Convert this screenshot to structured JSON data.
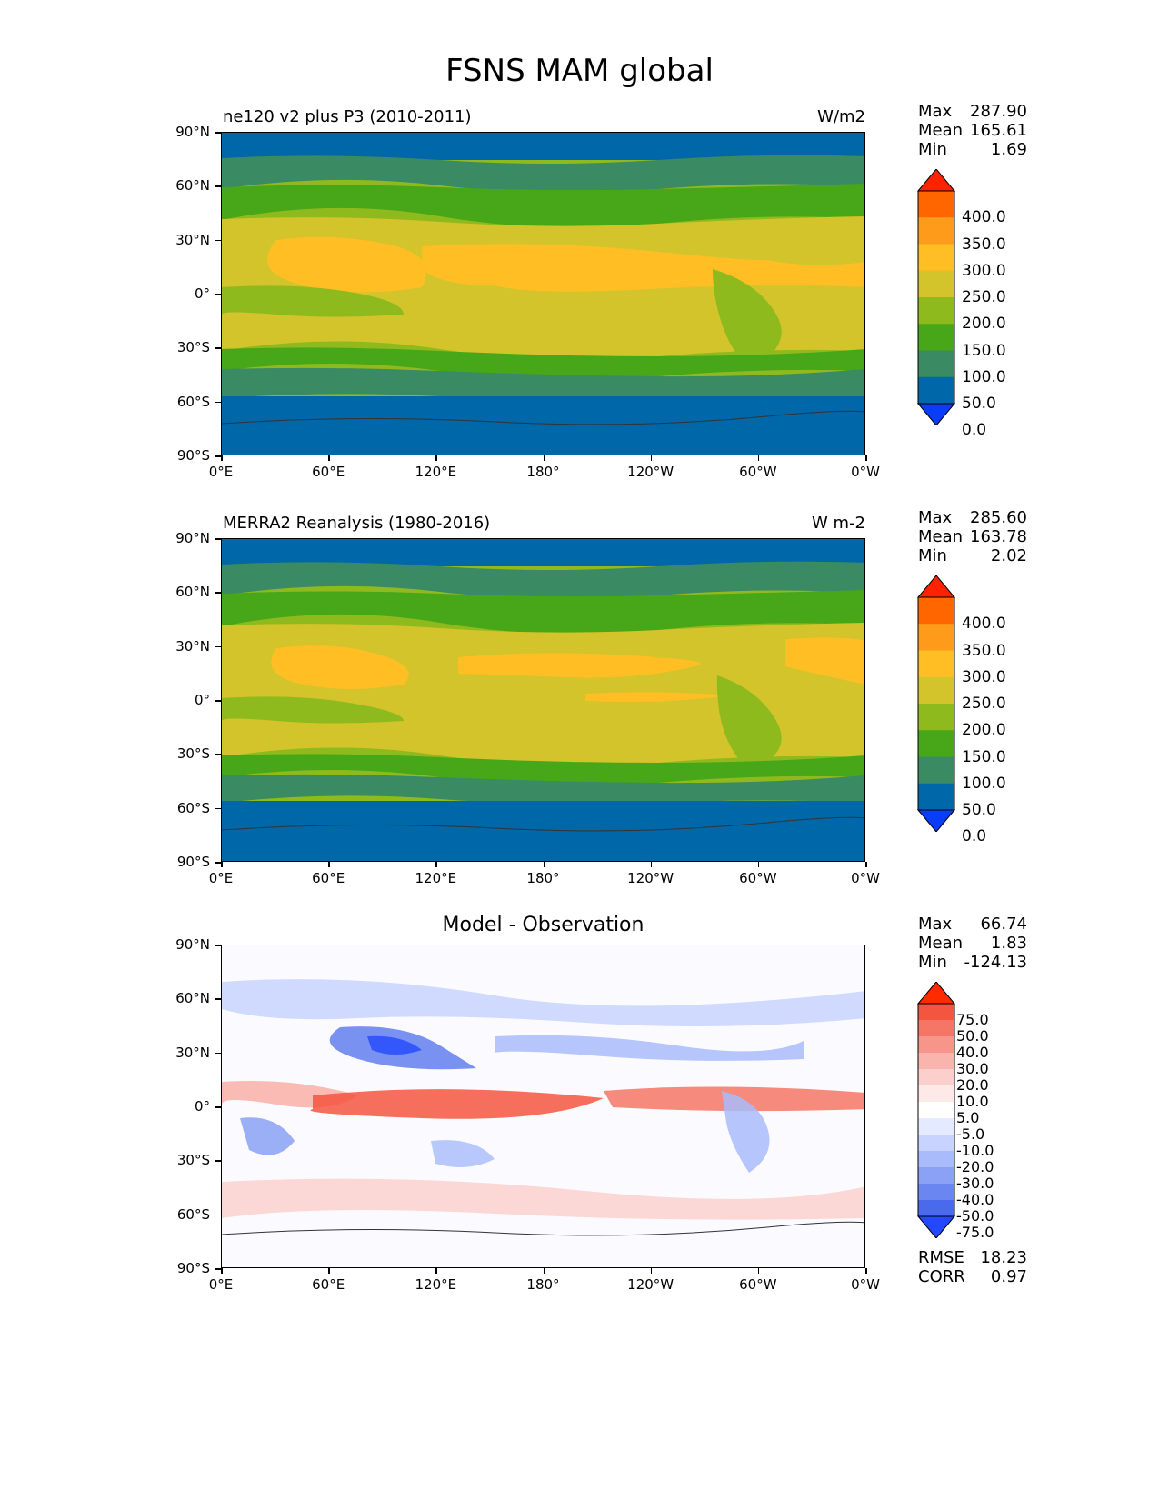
{
  "figure": {
    "title": "FSNS MAM global"
  },
  "axes": {
    "lat_ticks": [
      "90°N",
      "60°N",
      "30°N",
      "0°",
      "30°S",
      "60°S",
      "90°S"
    ],
    "lon_ticks": [
      "0°E",
      "60°E",
      "120°E",
      "180°",
      "120°W",
      "60°W",
      "0°W"
    ]
  },
  "panels": [
    {
      "title": "ne120 v2 plus P3 (2010-2011)",
      "units": "W/m2",
      "stats": {
        "max_label": "Max",
        "max": "287.90",
        "mean_label": "Mean",
        "mean": "165.61",
        "min_label": "Min",
        "min": "1.69"
      },
      "colorbar": {
        "levels": [
          "400.0",
          "350.0",
          "300.0",
          "250.0",
          "200.0",
          "150.0",
          "100.0",
          "50.0",
          "0.0"
        ],
        "colors": [
          "#ff2200",
          "#ff6600",
          "#ff9b1a",
          "#ffbe24",
          "#d2c42a",
          "#8fba1e",
          "#48a619",
          "#3a8a63",
          "#0067a8",
          "#0a3dfa"
        ]
      }
    },
    {
      "title": "MERRA2 Reanalysis (1980-2016)",
      "units": "W m-2",
      "stats": {
        "max_label": "Max",
        "max": "285.60",
        "mean_label": "Mean",
        "mean": "163.78",
        "min_label": "Min",
        "min": "2.02"
      },
      "colorbar": {
        "levels": [
          "400.0",
          "350.0",
          "300.0",
          "250.0",
          "200.0",
          "150.0",
          "100.0",
          "50.0",
          "0.0"
        ],
        "colors": [
          "#ff2200",
          "#ff6600",
          "#ff9b1a",
          "#ffbe24",
          "#d2c42a",
          "#8fba1e",
          "#48a619",
          "#3a8a63",
          "#0067a8",
          "#0a3dfa"
        ]
      }
    },
    {
      "title": "Model - Observation",
      "units": "",
      "stats": {
        "max_label": "Max",
        "max": "66.74",
        "mean_label": "Mean",
        "mean": "1.83",
        "min_label": "Min",
        "min": "-124.13"
      },
      "footer": {
        "rmse_label": "RMSE",
        "rmse": "18.23",
        "corr_label": "CORR",
        "corr": "0.97"
      },
      "colorbar": {
        "levels": [
          "75.0",
          "50.0",
          "40.0",
          "30.0",
          "20.0",
          "10.0",
          "5.0",
          "-5.0",
          "-10.0",
          "-20.0",
          "-30.0",
          "-40.0",
          "-50.0",
          "-75.0"
        ],
        "colors": [
          "#ff2a00",
          "#f4553f",
          "#f57566",
          "#f7958a",
          "#f9b4ad",
          "#fbd0cc",
          "#fde9e7",
          "#ffffff",
          "#e4eaff",
          "#c8d4ff",
          "#a9bbfb",
          "#8aa1f5",
          "#6a86f0",
          "#4a69ec",
          "#2348ff"
        ]
      }
    }
  ]
}
